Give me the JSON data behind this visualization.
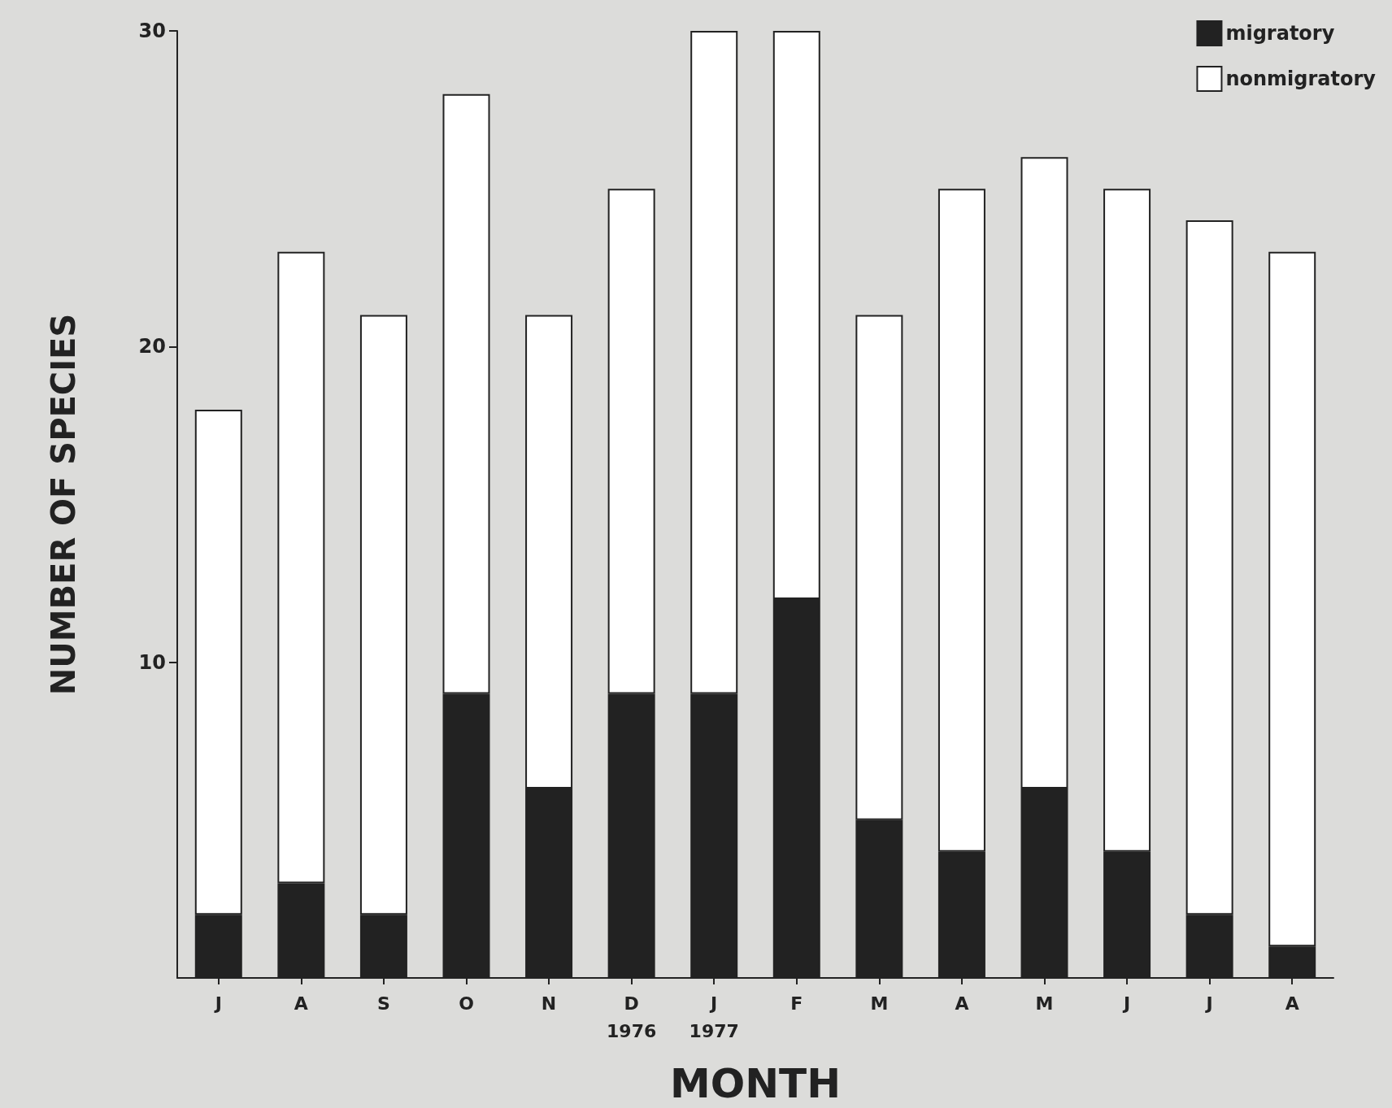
{
  "chart_data": {
    "type": "bar",
    "stacked": true,
    "categories": [
      "J",
      "A",
      "S",
      "O",
      "N",
      "D\n1976",
      "J\n1977",
      "F",
      "M",
      "A",
      "M",
      "J",
      "J",
      "A"
    ],
    "series": [
      {
        "name": "migratory",
        "color": "#222222",
        "values": [
          2,
          3,
          2,
          9,
          6,
          9,
          9,
          12,
          5,
          4,
          6,
          4,
          2,
          1
        ]
      },
      {
        "name": "nonmigratory",
        "color": "#ffffff",
        "values": [
          16,
          20,
          19,
          19,
          15,
          16,
          21,
          18,
          16,
          21,
          20,
          21,
          22,
          22
        ]
      }
    ],
    "xlabel": "MONTH",
    "ylabel": "NUMBER OF SPECIES",
    "ylim": [
      0,
      30
    ],
    "yticks": [
      10,
      20,
      30
    ],
    "grid": false,
    "legend": "top right"
  }
}
